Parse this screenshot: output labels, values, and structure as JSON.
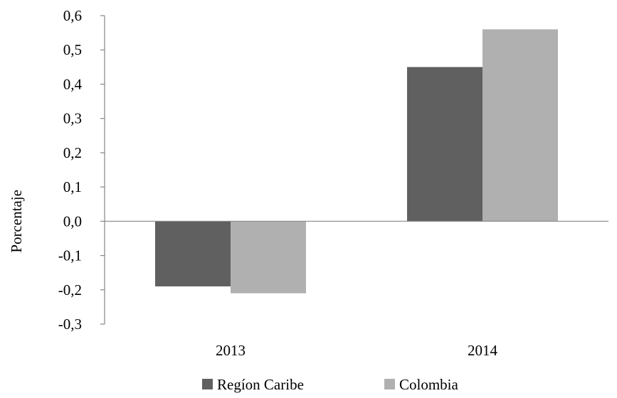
{
  "chart_data": {
    "type": "bar",
    "categories": [
      "2013",
      "2014"
    ],
    "series": [
      {
        "name": "Regíon Caribe",
        "values": [
          -0.19,
          0.45
        ],
        "color": "#606060"
      },
      {
        "name": "Colombia",
        "values": [
          -0.21,
          0.56
        ],
        "color": "#b0b0b0"
      }
    ],
    "title": "",
    "xlabel": "",
    "ylabel": "Porcentaje",
    "ylim": [
      -0.3,
      0.6
    ],
    "yticks": [
      0.6,
      0.5,
      0.4,
      0.3,
      0.2,
      0.1,
      0.0,
      -0.1,
      -0.2,
      -0.3
    ],
    "ytick_labels": [
      "0,6",
      "0,5",
      "0,4",
      "0,3",
      "0,2",
      "0,1",
      "0,0",
      "-0,1",
      "-0,2",
      "-0,3"
    ],
    "grid": false,
    "legend_position": "bottom-center",
    "axis_color": "#868686"
  }
}
